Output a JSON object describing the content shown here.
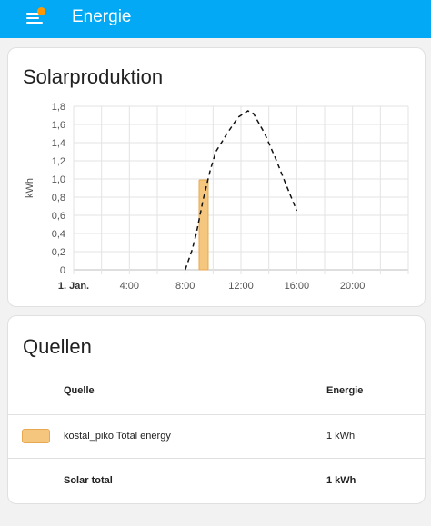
{
  "header": {
    "title": "Energie",
    "menu_icon": "menu-icon",
    "notification_color": "#ff9800"
  },
  "colors": {
    "header_bg": "#03a9f4",
    "bar_fill": "#f5c77e",
    "bar_stroke": "#e8a84e"
  },
  "solar_card": {
    "title": "Solarproduktion"
  },
  "chart_data": {
    "type": "bar",
    "ylabel": "kWh",
    "ylim": [
      0,
      1.8
    ],
    "y_ticks": [
      "0",
      "0,2",
      "0,4",
      "0,6",
      "0,8",
      "1,0",
      "1,2",
      "1,4",
      "1,6",
      "1,8"
    ],
    "xlim": [
      0,
      24
    ],
    "x_ticks": [
      {
        "label": "1. Jan.",
        "hour": 0,
        "bold": true
      },
      {
        "label": "4:00",
        "hour": 4
      },
      {
        "label": "8:00",
        "hour": 8
      },
      {
        "label": "12:00",
        "hour": 12
      },
      {
        "label": "16:00",
        "hour": 16
      },
      {
        "label": "20:00",
        "hour": 20
      }
    ],
    "grid": true,
    "bars": [
      {
        "hour_start": 9.0,
        "hour_end": 9.65,
        "value": 0.99
      }
    ],
    "forecast": {
      "style": "dashed",
      "points": [
        [
          8.0,
          0.0
        ],
        [
          8.5,
          0.22
        ],
        [
          8.8,
          0.4
        ],
        [
          9.3,
          0.78
        ],
        [
          9.8,
          1.1
        ],
        [
          10.2,
          1.3
        ],
        [
          11.0,
          1.5
        ],
        [
          11.8,
          1.68
        ],
        [
          12.5,
          1.75
        ],
        [
          12.9,
          1.72
        ],
        [
          13.7,
          1.5
        ],
        [
          14.5,
          1.22
        ],
        [
          15.2,
          0.95
        ],
        [
          16.0,
          0.65
        ]
      ]
    }
  },
  "sources_card": {
    "title": "Quellen",
    "col_source": "Quelle",
    "col_energy": "Energie",
    "rows": [
      {
        "name": "kostal_piko Total energy",
        "value": "1 kWh"
      }
    ],
    "total_label": "Solar total",
    "total_value": "1 kWh"
  }
}
